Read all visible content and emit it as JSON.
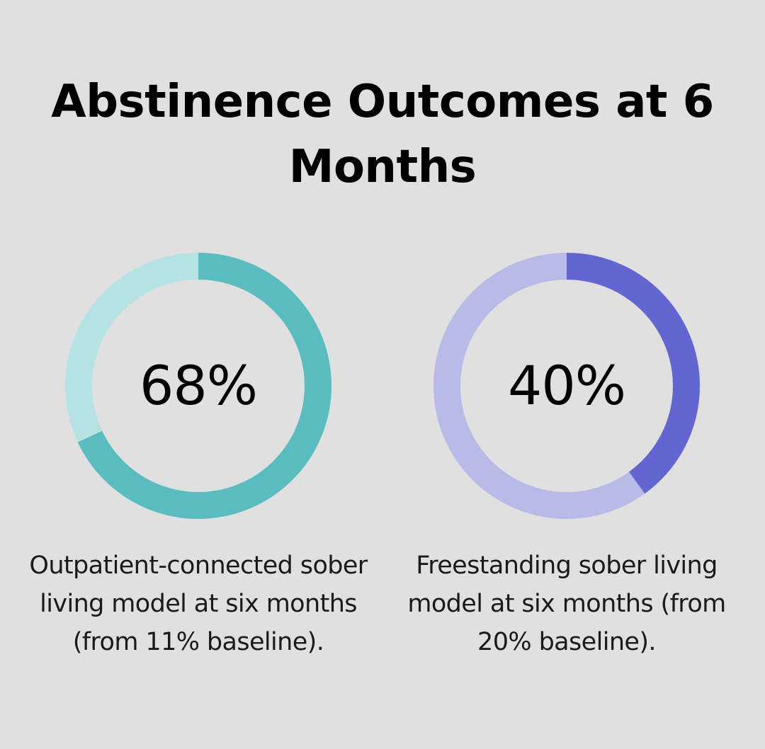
{
  "title": "Abstinence Outcomes at 6 Months",
  "chart_data": [
    {
      "type": "pie",
      "variant": "donut",
      "value_percent": 68,
      "value_label": "68%",
      "caption": "Outpatient-connected sober living model at six months (from 11% baseline).",
      "colors": {
        "fill": "#5bbcc0",
        "track": "#b7e2e4"
      }
    },
    {
      "type": "pie",
      "variant": "donut",
      "value_percent": 40,
      "value_label": "40%",
      "caption": "Freestanding sober living model at six months (from 20% baseline).",
      "colors": {
        "fill": "#6366d1",
        "track": "#b8bae8"
      }
    }
  ],
  "colors": {
    "background": "#dfe0df",
    "text": "#000000"
  }
}
